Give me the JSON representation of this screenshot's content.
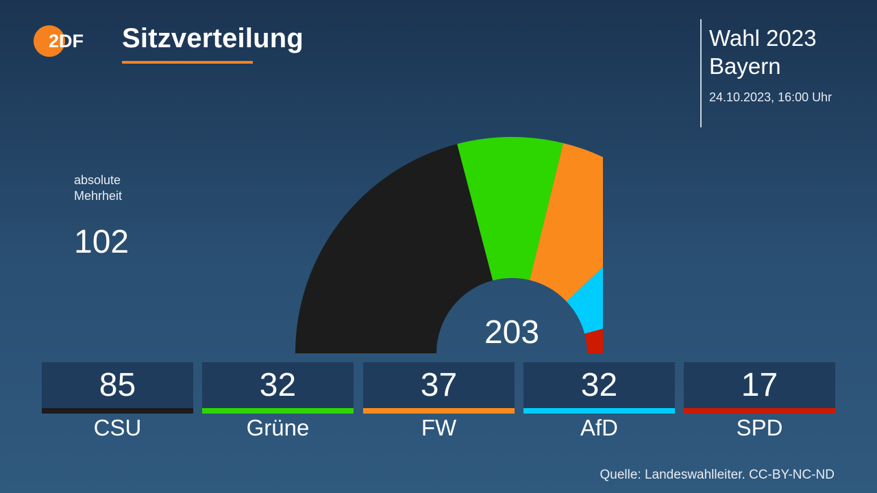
{
  "header": {
    "logo_text": "2DF",
    "title": "Sitzverteilung"
  },
  "info": {
    "election": "Wahl 2023",
    "region": "Bayern",
    "date": "24.10.2023, 16:00 Uhr"
  },
  "majority": {
    "label_line1": "absolute",
    "label_line2": "Mehrheit",
    "value": "102"
  },
  "source": "Quelle: Landeswahlleiter. CC-BY-NC-ND",
  "colors": {
    "accent": "#f5821f",
    "background_top": "#1b3452",
    "background_bottom": "#30597e",
    "box": "#1f3c5c"
  },
  "chart_data": {
    "type": "pie",
    "subtype": "hemicycle",
    "title": "Sitzverteilung",
    "total": 203,
    "total_label": "203",
    "majority": 102,
    "parties": [
      {
        "name": "CSU",
        "seats": 85,
        "color": "#1c1c1c"
      },
      {
        "name": "Grüne",
        "seats": 32,
        "color": "#2ed600"
      },
      {
        "name": "FW",
        "seats": 37,
        "color": "#fb8a1c"
      },
      {
        "name": "AfD",
        "seats": 32,
        "color": "#00cdfd"
      },
      {
        "name": "SPD",
        "seats": 17,
        "color": "#cd1a00"
      }
    ]
  }
}
